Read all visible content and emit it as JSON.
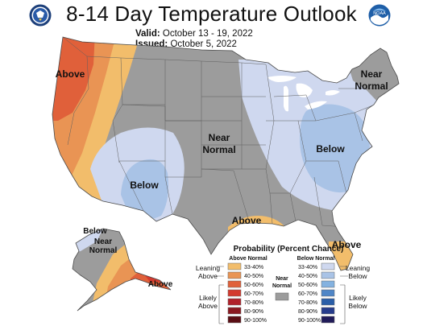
{
  "header": {
    "title": "8-14 Day Temperature Outlook",
    "valid_label": "Valid:",
    "valid_value": "October 13 - 19, 2022",
    "issued_label": "Issued:",
    "issued_value": "October 5, 2022",
    "left_logo_icon": "department-of-commerce-seal",
    "right_logo_icon": "noaa-logo",
    "right_logo_text": "NOAA"
  },
  "map_labels": {
    "west_above": "Above",
    "southwest_below": "Below",
    "central_near_normal_1": "Near",
    "central_near_normal_2": "Normal",
    "northeast_near_normal_1": "Near",
    "northeast_near_normal_2": "Normal",
    "east_below": "Below",
    "gulf_above": "Above",
    "florida_above": "Above",
    "alaska_below": "Below",
    "alaska_near_normal_1": "Near",
    "alaska_near_normal_2": "Normal",
    "alaska_above": "Above"
  },
  "legend": {
    "title": "Probability (Percent Chance)",
    "above_header": "Above Normal",
    "below_header": "Below Normal",
    "leaning_above": [
      "Leaning",
      "Above"
    ],
    "likely_above": [
      "Likely",
      "Above"
    ],
    "leaning_below": [
      "Leaning",
      "Below"
    ],
    "likely_below": [
      "Likely",
      "Below"
    ],
    "near_normal": [
      "Near",
      "Normal"
    ],
    "above_bins": [
      {
        "label": "33-40%",
        "color": "#f2bd6b"
      },
      {
        "label": "40-50%",
        "color": "#e99454"
      },
      {
        "label": "50-60%",
        "color": "#e0603a"
      },
      {
        "label": "60-70%",
        "color": "#d33a2f"
      },
      {
        "label": "70-80%",
        "color": "#b0212a"
      },
      {
        "label": "80-90%",
        "color": "#8a1820"
      },
      {
        "label": "90-100%",
        "color": "#5a0e14"
      }
    ],
    "below_bins": [
      {
        "label": "33-40%",
        "color": "#cfd8ef"
      },
      {
        "label": "40-50%",
        "color": "#a9c3e6"
      },
      {
        "label": "50-60%",
        "color": "#84b2e0"
      },
      {
        "label": "60-70%",
        "color": "#4f86c7"
      },
      {
        "label": "70-80%",
        "color": "#2a5ea8"
      },
      {
        "label": "80-90%",
        "color": "#263c8c"
      },
      {
        "label": "90-100%",
        "color": "#201b59"
      }
    ],
    "near_normal_color": "#9c9c9c"
  }
}
